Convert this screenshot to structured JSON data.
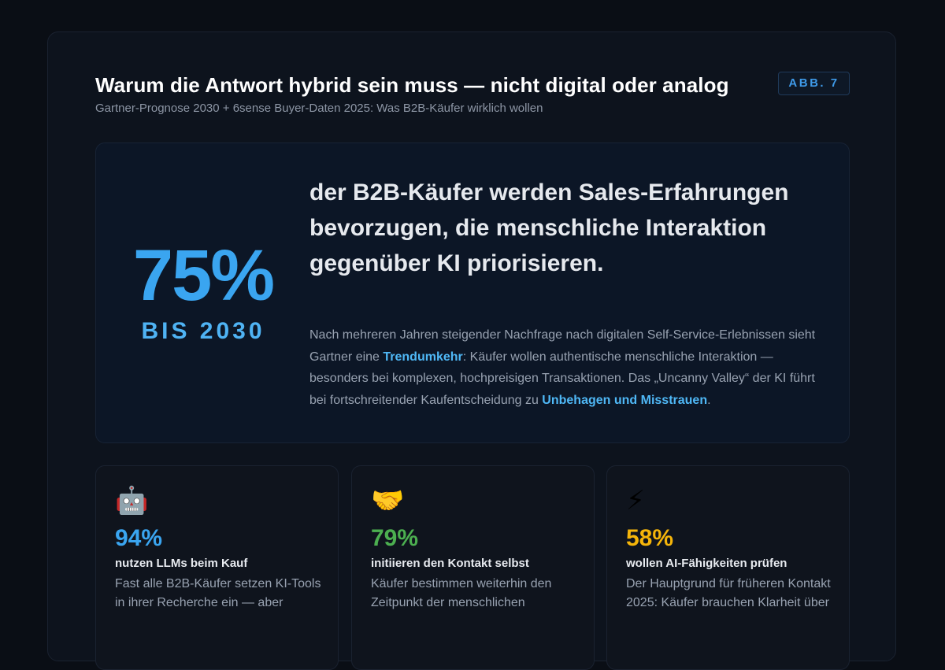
{
  "header": {
    "title": "Warum die Antwort hybrid sein muss — nicht digital oder analog",
    "subtitle": "Gartner-Prognose 2030 + 6sense Buyer-Daten 2025: Was B2B-Käufer wirklich wollen",
    "badge": "ABB. 7"
  },
  "hero": {
    "percent": "75%",
    "percent_label": "BIS 2030",
    "headline": "der B2B-Käufer werden Sales-Erfahrungen bevorzugen, die menschliche Interaktion gegenüber KI priorisieren.",
    "desc_part1": "Nach mehreren Jahren steigender Nachfrage nach digitalen Self-Service-Erlebnissen sieht Gartner eine ",
    "desc_highlight1": "Trendumkehr",
    "desc_part2": ": Käufer wollen authentische menschliche Interaktion — besonders bei komplexen, hochpreisigen Transaktionen. Das „Uncanny Valley“ der KI führt bei fortschreitender Kaufentscheidung zu ",
    "desc_highlight2": "Unbehagen und Misstrauen",
    "desc_part3": "."
  },
  "stats": [
    {
      "icon": "robot-icon",
      "glyph": "🤖",
      "value": "94%",
      "color": "#3aa5f0",
      "label": "nutzen LLMs beim Kauf",
      "text": "Fast alle B2B-Käufer setzen KI-Tools in ihrer Recherche ein — aber"
    },
    {
      "icon": "handshake-icon",
      "glyph": "🤝",
      "value": "79%",
      "color": "#4caf50",
      "label": "initiieren den Kontakt selbst",
      "text": "Käufer bestimmen weiterhin den Zeitpunkt der menschlichen"
    },
    {
      "icon": "lightning-icon",
      "glyph": "⚡",
      "value": "58%",
      "color": "#f5b50a",
      "label": "wollen AI-Fähigkeiten prüfen",
      "text": "Der Hauptgrund für früheren Kontakt 2025: Käufer brauchen Klarheit über"
    }
  ]
}
